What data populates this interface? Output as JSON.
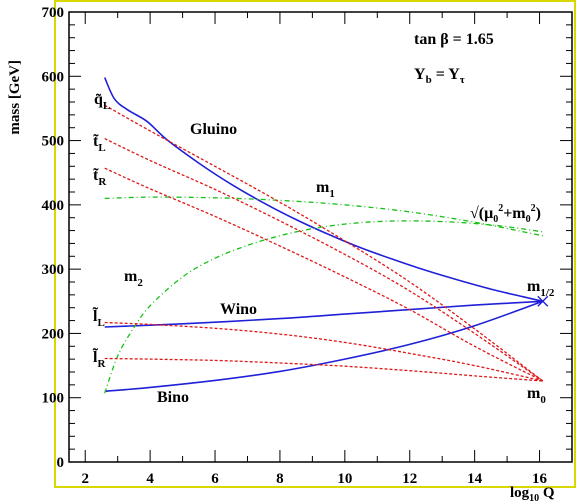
{
  "chart_data": {
    "type": "line",
    "xlabel": "log",
    "xlabel_sub": "10",
    "xlabel_tail": " Q",
    "ylabel": "mass [GeV]",
    "xlim": [
      1.5,
      17.0
    ],
    "ylim": [
      0,
      700
    ],
    "x_ticks": [
      "2",
      "4",
      "6",
      "8",
      "10",
      "12",
      "14",
      "16"
    ],
    "y_ticks": [
      "0",
      "100",
      "200",
      "300",
      "400",
      "500",
      "600",
      "700"
    ],
    "annotations": {
      "tanb": "tan β = 1.65",
      "yb": "Y",
      "yb_sub1": "b",
      "yb_eq": " = Y",
      "yb_sub2": "τ",
      "mu_label": "√(μ",
      "mu_sub": "0",
      "mu_sup": "2",
      "mu_plus": "+m",
      "mu_sub2": "0",
      "mu_sup2": "2",
      "mu_close": ")",
      "m1": "m",
      "m1_sub": "1",
      "m2": "m",
      "m2_sub": "2",
      "mhalf": "m",
      "mhalf_sub": "1/2",
      "m0": "m",
      "m0_sub": "0",
      "qL": "q̃",
      "qL_sub": "L",
      "tL": "t̃",
      "tL_sub": "L",
      "tR": "t̃",
      "tR_sub": "R",
      "lL": "l̃",
      "lL_sub": "L",
      "lR": "l̃",
      "lR_sub": "R",
      "gluino": "Gluino",
      "wino": "Wino",
      "bino": "Bino"
    },
    "series": [
      {
        "style": "solid-blue",
        "x": [
          2.6,
          2.9,
          3.3,
          3.9,
          4.5,
          5.5,
          6.5,
          7.5,
          8.5,
          9.5,
          10.5,
          11.5,
          12.5,
          13.5,
          14.5,
          15.5,
          16.1
        ],
        "y": [
          598,
          565,
          548,
          530,
          502,
          465,
          432,
          403,
          377,
          354,
          333,
          315,
          298,
          283,
          269,
          257,
          250
        ]
      },
      {
        "style": "solid-blue",
        "x": [
          2.6,
          5,
          8,
          10,
          12,
          14,
          16.1
        ],
        "y": [
          210,
          215,
          223,
          230,
          237,
          244,
          250
        ]
      },
      {
        "style": "solid-blue",
        "x": [
          2.6,
          4,
          6,
          8,
          10,
          12,
          14,
          16.1
        ],
        "y": [
          110,
          116,
          127,
          141,
          160,
          183,
          212,
          250
        ]
      },
      {
        "style": "dashdot-green",
        "x": [
          2.6,
          4,
          6,
          8,
          10,
          12,
          14,
          16.1
        ],
        "y": [
          410,
          412,
          411,
          407,
          400,
          389,
          373,
          352
        ]
      },
      {
        "style": "dashdot-green",
        "x": [
          2.6,
          3,
          3.5,
          4,
          5,
          6,
          7,
          8,
          9,
          10,
          11,
          12,
          13,
          14,
          15,
          16.1
        ],
        "y": [
          107,
          165,
          209,
          243,
          288,
          317,
          337,
          352,
          363,
          370,
          374,
          375,
          374,
          371,
          366,
          358
        ]
      },
      {
        "style": "dotted-red",
        "x": [
          2.6,
          4,
          6,
          8,
          10,
          12,
          14,
          16.1
        ],
        "y": [
          555,
          515,
          460,
          404,
          344,
          280,
          207,
          126
        ]
      },
      {
        "style": "dotted-red",
        "x": [
          2.6,
          4,
          6,
          8,
          10,
          12,
          14,
          16.1
        ],
        "y": [
          503,
          469,
          424,
          375,
          323,
          266,
          200,
          126
        ]
      },
      {
        "style": "dotted-red",
        "x": [
          2.6,
          4,
          6,
          8,
          10,
          12,
          14,
          16.1
        ],
        "y": [
          457,
          425,
          382,
          336,
          288,
          237,
          180,
          126
        ]
      },
      {
        "style": "dotted-red",
        "x": [
          2.6,
          4,
          6,
          8,
          10,
          12,
          14,
          16.1
        ],
        "y": [
          217,
          214,
          208,
          199,
          186,
          169,
          150,
          126
        ]
      },
      {
        "style": "dotted-red",
        "x": [
          2.6,
          4,
          6,
          8,
          10,
          12,
          14,
          16.1
        ],
        "y": [
          161,
          160,
          158,
          154,
          149,
          142,
          134,
          126
        ]
      }
    ]
  },
  "colors": {
    "frame_border": "#d8d800",
    "blue": "#2020d8",
    "red": "#e01818",
    "green": "#18c018"
  }
}
